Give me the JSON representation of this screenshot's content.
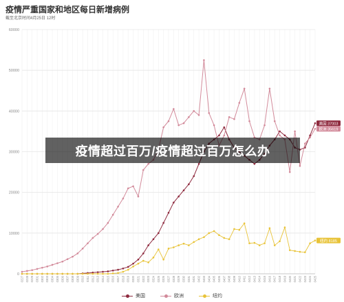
{
  "header": {
    "title": "疫情严重国家和地区每日新增病例",
    "subtitle": "截至北京时间4月25日 12时"
  },
  "banner": {
    "text": "疫情超过百万/疫情超过百万怎么办"
  },
  "colors": {
    "usa": "#8e2a3e",
    "europe": "#d28a9a",
    "newyork": "#e8c338",
    "grid": "#e8e8e8",
    "axis": "#999999"
  },
  "chart_data": {
    "type": "line",
    "ylim": [
      0,
      60000
    ],
    "yticks": [
      0,
      10000,
      20000,
      30000,
      40000,
      50000,
      60000
    ],
    "categories": [
      "02/27",
      "02/28",
      "02/29",
      "03/01",
      "03/02",
      "03/03",
      "03/04",
      "03/05",
      "03/06",
      "03/07",
      "03/08",
      "03/09",
      "03/10",
      "03/11",
      "03/12",
      "03/13",
      "03/14",
      "03/15",
      "03/16",
      "03/17",
      "03/18",
      "03/19",
      "03/20",
      "03/21",
      "03/22",
      "03/23",
      "03/24",
      "03/25",
      "03/26",
      "03/27",
      "03/28",
      "03/29",
      "03/30",
      "03/31",
      "04/01",
      "04/02",
      "04/03",
      "04/04",
      "04/05",
      "04/06",
      "04/07",
      "04/08",
      "04/09",
      "04/10",
      "04/11",
      "04/12",
      "04/13",
      "04/14",
      "04/15",
      "04/16",
      "04/17",
      "04/18",
      "04/19",
      "04/20",
      "04/21",
      "04/22",
      "04/23",
      "04/24",
      "04/25"
    ],
    "series": [
      {
        "name": "美国",
        "color": "#8e2a3e",
        "end_label": "美国 37003",
        "values": [
          0,
          0,
          0,
          0,
          0,
          0,
          0,
          0,
          0,
          0,
          0,
          0,
          100,
          200,
          300,
          400,
          500,
          600,
          800,
          1000,
          1300,
          1700,
          2500,
          3500,
          5000,
          7000,
          8500,
          10000,
          12500,
          15000,
          17500,
          19000,
          20500,
          22000,
          24000,
          27000,
          30000,
          32000,
          33000,
          34000,
          36000,
          33000,
          31000,
          30000,
          29000,
          28000,
          27000,
          28000,
          29500,
          31500,
          33000,
          35000,
          34000,
          33000,
          31000,
          30500,
          31000,
          34000,
          37003
        ]
      },
      {
        "name": "欧洲",
        "color": "#d28a9a",
        "end_label": "欧洲 35619",
        "values": [
          500,
          700,
          900,
          1200,
          1500,
          1800,
          2200,
          2600,
          3000,
          3600,
          4200,
          5000,
          6200,
          7500,
          8800,
          9800,
          11000,
          12500,
          14500,
          16500,
          18500,
          21000,
          21500,
          19000,
          25500,
          27000,
          28000,
          30500,
          36000,
          37500,
          40500,
          36500,
          37000,
          38500,
          40000,
          39000,
          52500,
          39500,
          36500,
          31500,
          34000,
          38500,
          38000,
          42000,
          45500,
          37500,
          33500,
          33000,
          36500,
          45500,
          37500,
          34000,
          33000,
          25000,
          35000,
          26500,
          32000,
          33500,
          35619
        ]
      },
      {
        "name": "纽约",
        "color": "#e8c338",
        "end_label": "纽约 8185",
        "values": [
          0,
          0,
          0,
          0,
          0,
          0,
          0,
          0,
          0,
          0,
          0,
          0,
          0,
          0,
          0,
          0,
          0,
          0,
          100,
          200,
          500,
          1000,
          1800,
          2500,
          3200,
          2800,
          4000,
          6000,
          3500,
          6200,
          6500,
          7000,
          7400,
          7000,
          7800,
          8500,
          9000,
          10000,
          10500,
          9500,
          8800,
          8500,
          11000,
          10800,
          12400,
          7500,
          7600,
          7000,
          7500,
          11200,
          7000,
          8000,
          11400,
          5800,
          5600,
          5400,
          5300,
          7500,
          8185
        ]
      }
    ],
    "legend_position": "bottom-center"
  }
}
